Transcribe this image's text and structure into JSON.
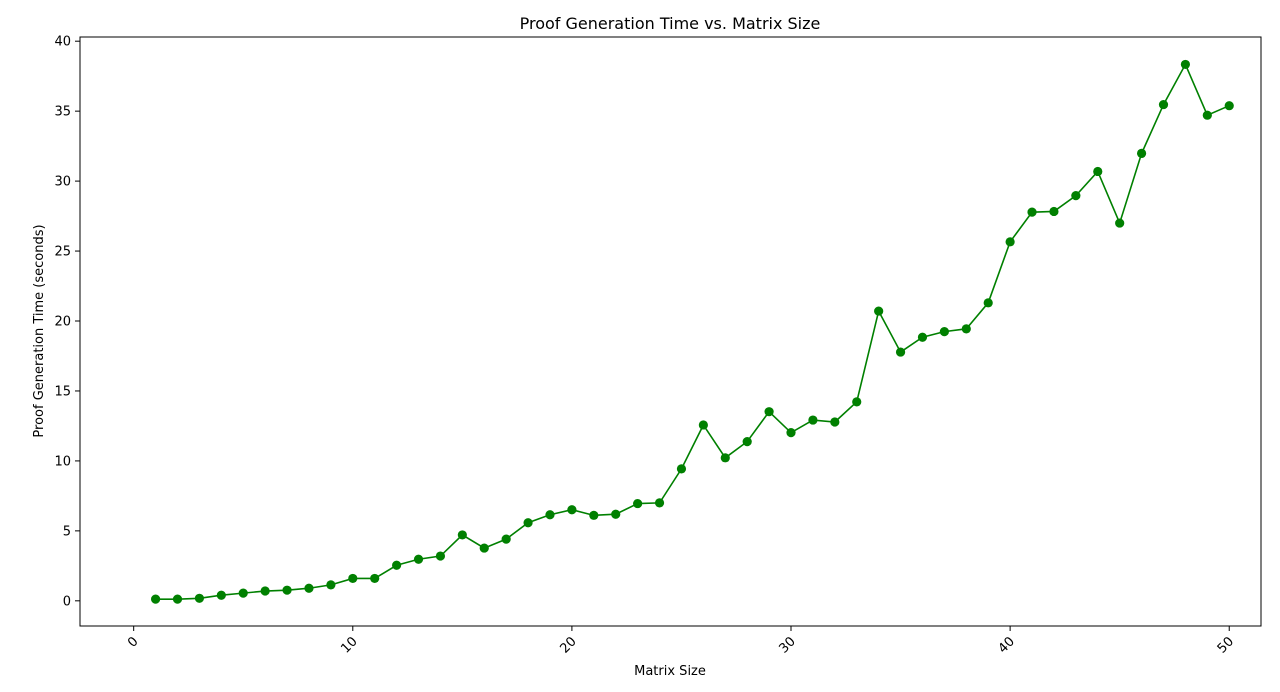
{
  "chart_data": {
    "type": "line",
    "title": "Proof Generation Time vs. Matrix Size",
    "xlabel": "Matrix Size",
    "ylabel": "Proof Generation Time (seconds)",
    "xlim": [
      -2.45,
      51.45
    ],
    "ylim": [
      -1.8,
      40.3
    ],
    "xticks": [
      0,
      10,
      20,
      30,
      40,
      50
    ],
    "yticks": [
      0,
      5,
      10,
      15,
      20,
      25,
      30,
      35,
      40
    ],
    "grid": false,
    "series_color": "#008000",
    "x": [
      1,
      2,
      3,
      4,
      5,
      6,
      7,
      8,
      9,
      10,
      11,
      12,
      13,
      14,
      15,
      16,
      17,
      18,
      19,
      20,
      21,
      22,
      23,
      24,
      25,
      26,
      27,
      28,
      29,
      30,
      31,
      32,
      33,
      34,
      35,
      36,
      37,
      38,
      39,
      40,
      41,
      42,
      43,
      44,
      45,
      46,
      47,
      48,
      49,
      50
    ],
    "y": [
      0.12,
      0.12,
      0.18,
      0.4,
      0.55,
      0.7,
      0.76,
      0.9,
      1.14,
      1.6,
      1.6,
      2.54,
      2.97,
      3.2,
      4.71,
      3.77,
      4.41,
      5.58,
      6.15,
      6.51,
      6.11,
      6.19,
      6.95,
      7.0,
      9.43,
      12.57,
      10.22,
      11.38,
      13.52,
      12.02,
      12.92,
      12.78,
      14.22,
      20.71,
      17.78,
      18.84,
      19.24,
      19.44,
      21.3,
      25.66,
      27.78,
      27.83,
      28.96,
      30.69,
      27.0,
      31.98,
      35.47,
      38.34,
      34.71,
      35.39
    ]
  }
}
